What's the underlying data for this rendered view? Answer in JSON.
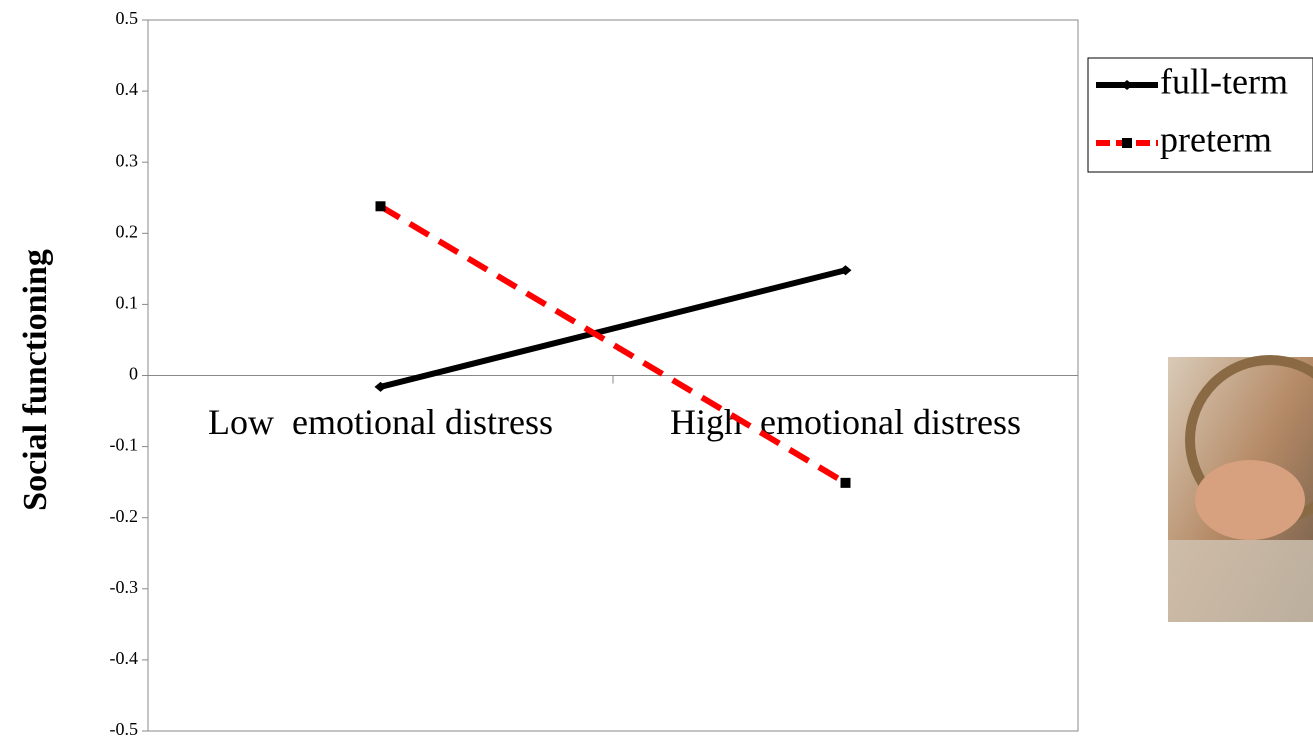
{
  "chart_data": {
    "type": "line",
    "y_label": "Social functioning",
    "categories": [
      "Low  emotional distress",
      "High  emotional distress"
    ],
    "series": [
      {
        "name": "full-term",
        "color": "#000000",
        "dashed": false,
        "marker": "diamond",
        "values": [
          -0.016,
          0.148
        ]
      },
      {
        "name": "preterm",
        "color": "#ff0000",
        "dashed": true,
        "marker": "square",
        "values": [
          0.238,
          -0.151
        ]
      }
    ],
    "ylim": [
      -0.5,
      0.5
    ],
    "yticks": [
      -0.5,
      -0.4,
      -0.3,
      -0.2,
      -0.1,
      0,
      0.1,
      0.2,
      0.3,
      0.4,
      0.5
    ],
    "legend": "right"
  }
}
